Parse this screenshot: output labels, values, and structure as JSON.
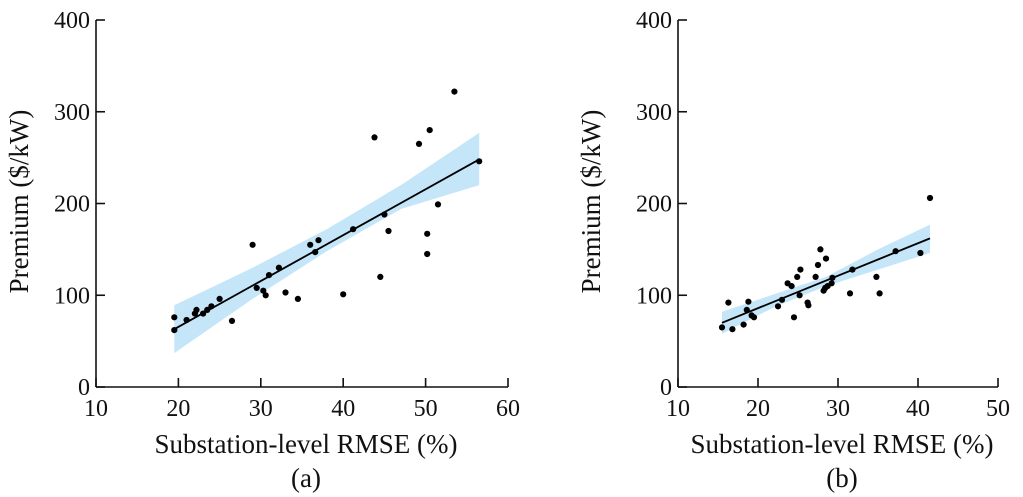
{
  "chart_data": [
    {
      "type": "scatter",
      "panel_label": "(a)",
      "xlabel": "Substation-level RMSE (%)",
      "ylabel": "Premium ($/kW)",
      "xlim": [
        10,
        60
      ],
      "ylim": [
        0,
        400
      ],
      "xticks": [
        10,
        20,
        30,
        40,
        50,
        60
      ],
      "yticks": [
        0,
        100,
        200,
        300,
        400
      ],
      "grid": false,
      "colors": {
        "points": "#000000",
        "fit_line": "#000000",
        "confidence_band": "#c4e6f8"
      },
      "points": [
        [
          19.5,
          76
        ],
        [
          19.5,
          62
        ],
        [
          21,
          73
        ],
        [
          22,
          80
        ],
        [
          22.2,
          84
        ],
        [
          23,
          80
        ],
        [
          23.5,
          84
        ],
        [
          24,
          88
        ],
        [
          25,
          96
        ],
        [
          26.5,
          72
        ],
        [
          29,
          155
        ],
        [
          29.5,
          108
        ],
        [
          30.3,
          105
        ],
        [
          30.6,
          100
        ],
        [
          31,
          122
        ],
        [
          32.2,
          130
        ],
        [
          33,
          103
        ],
        [
          34.5,
          96
        ],
        [
          36,
          155
        ],
        [
          36.6,
          147
        ],
        [
          37,
          160
        ],
        [
          40,
          101
        ],
        [
          41.2,
          172
        ],
        [
          43.8,
          272
        ],
        [
          44.5,
          120
        ],
        [
          45,
          188
        ],
        [
          45.5,
          170
        ],
        [
          49.2,
          265
        ],
        [
          50.2,
          167
        ],
        [
          50.2,
          145
        ],
        [
          50.5,
          280
        ],
        [
          51.5,
          199
        ],
        [
          53.5,
          322
        ],
        [
          56.5,
          246
        ]
      ],
      "fit": {
        "x": [
          19.5,
          56.5
        ],
        "y": [
          63,
          248
        ]
      },
      "band": {
        "x": [
          19.5,
          29,
          38,
          47,
          56.5
        ],
        "lower": [
          37,
          96,
          148,
          194,
          220
        ],
        "upper": [
          89,
          130,
          172,
          220,
          277
        ]
      }
    },
    {
      "type": "scatter",
      "panel_label": "(b)",
      "xlabel": "Substation-level RMSE (%)",
      "ylabel": "Premium ($/kW)",
      "xlim": [
        10,
        50
      ],
      "ylim": [
        0,
        400
      ],
      "xticks": [
        10,
        20,
        30,
        40,
        50
      ],
      "yticks": [
        0,
        100,
        200,
        300,
        400
      ],
      "grid": false,
      "colors": {
        "points": "#000000",
        "fit_line": "#000000",
        "confidence_band": "#c4e6f8"
      },
      "points": [
        [
          15.5,
          65
        ],
        [
          16.3,
          92
        ],
        [
          16.8,
          63
        ],
        [
          18.2,
          68
        ],
        [
          18.6,
          84
        ],
        [
          18.8,
          93
        ],
        [
          19.2,
          78
        ],
        [
          19.5,
          76
        ],
        [
          22.5,
          88
        ],
        [
          23,
          95
        ],
        [
          23.7,
          113
        ],
        [
          24.2,
          110
        ],
        [
          24.5,
          76
        ],
        [
          24.9,
          120
        ],
        [
          25.2,
          100
        ],
        [
          25.3,
          128
        ],
        [
          26.2,
          92
        ],
        [
          26.3,
          89
        ],
        [
          27.2,
          120
        ],
        [
          27.5,
          133
        ],
        [
          27.8,
          150
        ],
        [
          28.2,
          105
        ],
        [
          28.4,
          108
        ],
        [
          28.5,
          140
        ],
        [
          28.7,
          110
        ],
        [
          29.2,
          113
        ],
        [
          29.3,
          119
        ],
        [
          31.5,
          102
        ],
        [
          31.8,
          128
        ],
        [
          34.8,
          120
        ],
        [
          35.2,
          102
        ],
        [
          37.2,
          148
        ],
        [
          40.3,
          146
        ],
        [
          41.5,
          206
        ]
      ],
      "fit": {
        "x": [
          15.5,
          41.5
        ],
        "y": [
          70,
          162
        ]
      },
      "band": {
        "x": [
          15.5,
          22,
          28.5,
          35,
          41.5
        ],
        "lower": [
          58,
          87,
          110,
          128,
          146
        ],
        "upper": [
          82,
          101,
          120,
          150,
          177
        ]
      }
    }
  ]
}
